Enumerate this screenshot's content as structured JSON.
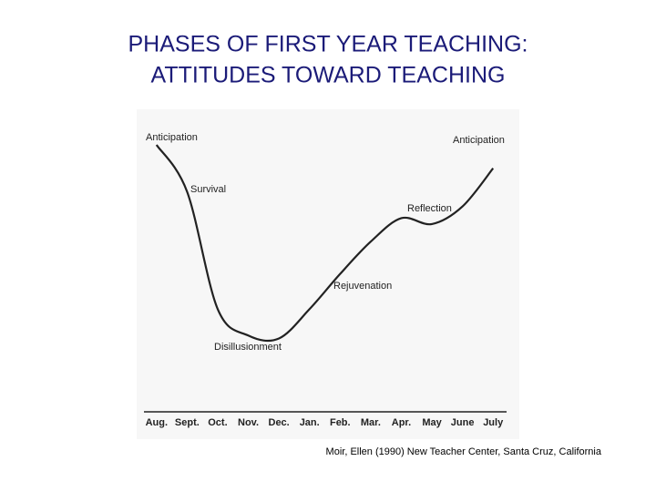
{
  "chart_data": {
    "type": "line",
    "title": [
      "PHASES OF FIRST YEAR TEACHING:",
      "ATTITUDES TOWARD TEACHING"
    ],
    "categories": [
      "Aug.",
      "Sept.",
      "Oct.",
      "Nov.",
      "Dec.",
      "Jan.",
      "Feb.",
      "Mar.",
      "Apr.",
      "May",
      "June",
      "July"
    ],
    "values": [
      91,
      75,
      35,
      26,
      25,
      35,
      47,
      58,
      66,
      64,
      70,
      83
    ],
    "color": "#222222",
    "ylim": [
      0,
      100
    ],
    "annotations": [
      "Anticipation",
      "Survival",
      "Disillusionment",
      "Rejuvenation",
      "Reflection",
      "Anticipation"
    ],
    "source": "Moir, Ellen (1990) New Teacher Center, Santa Cruz, California"
  }
}
